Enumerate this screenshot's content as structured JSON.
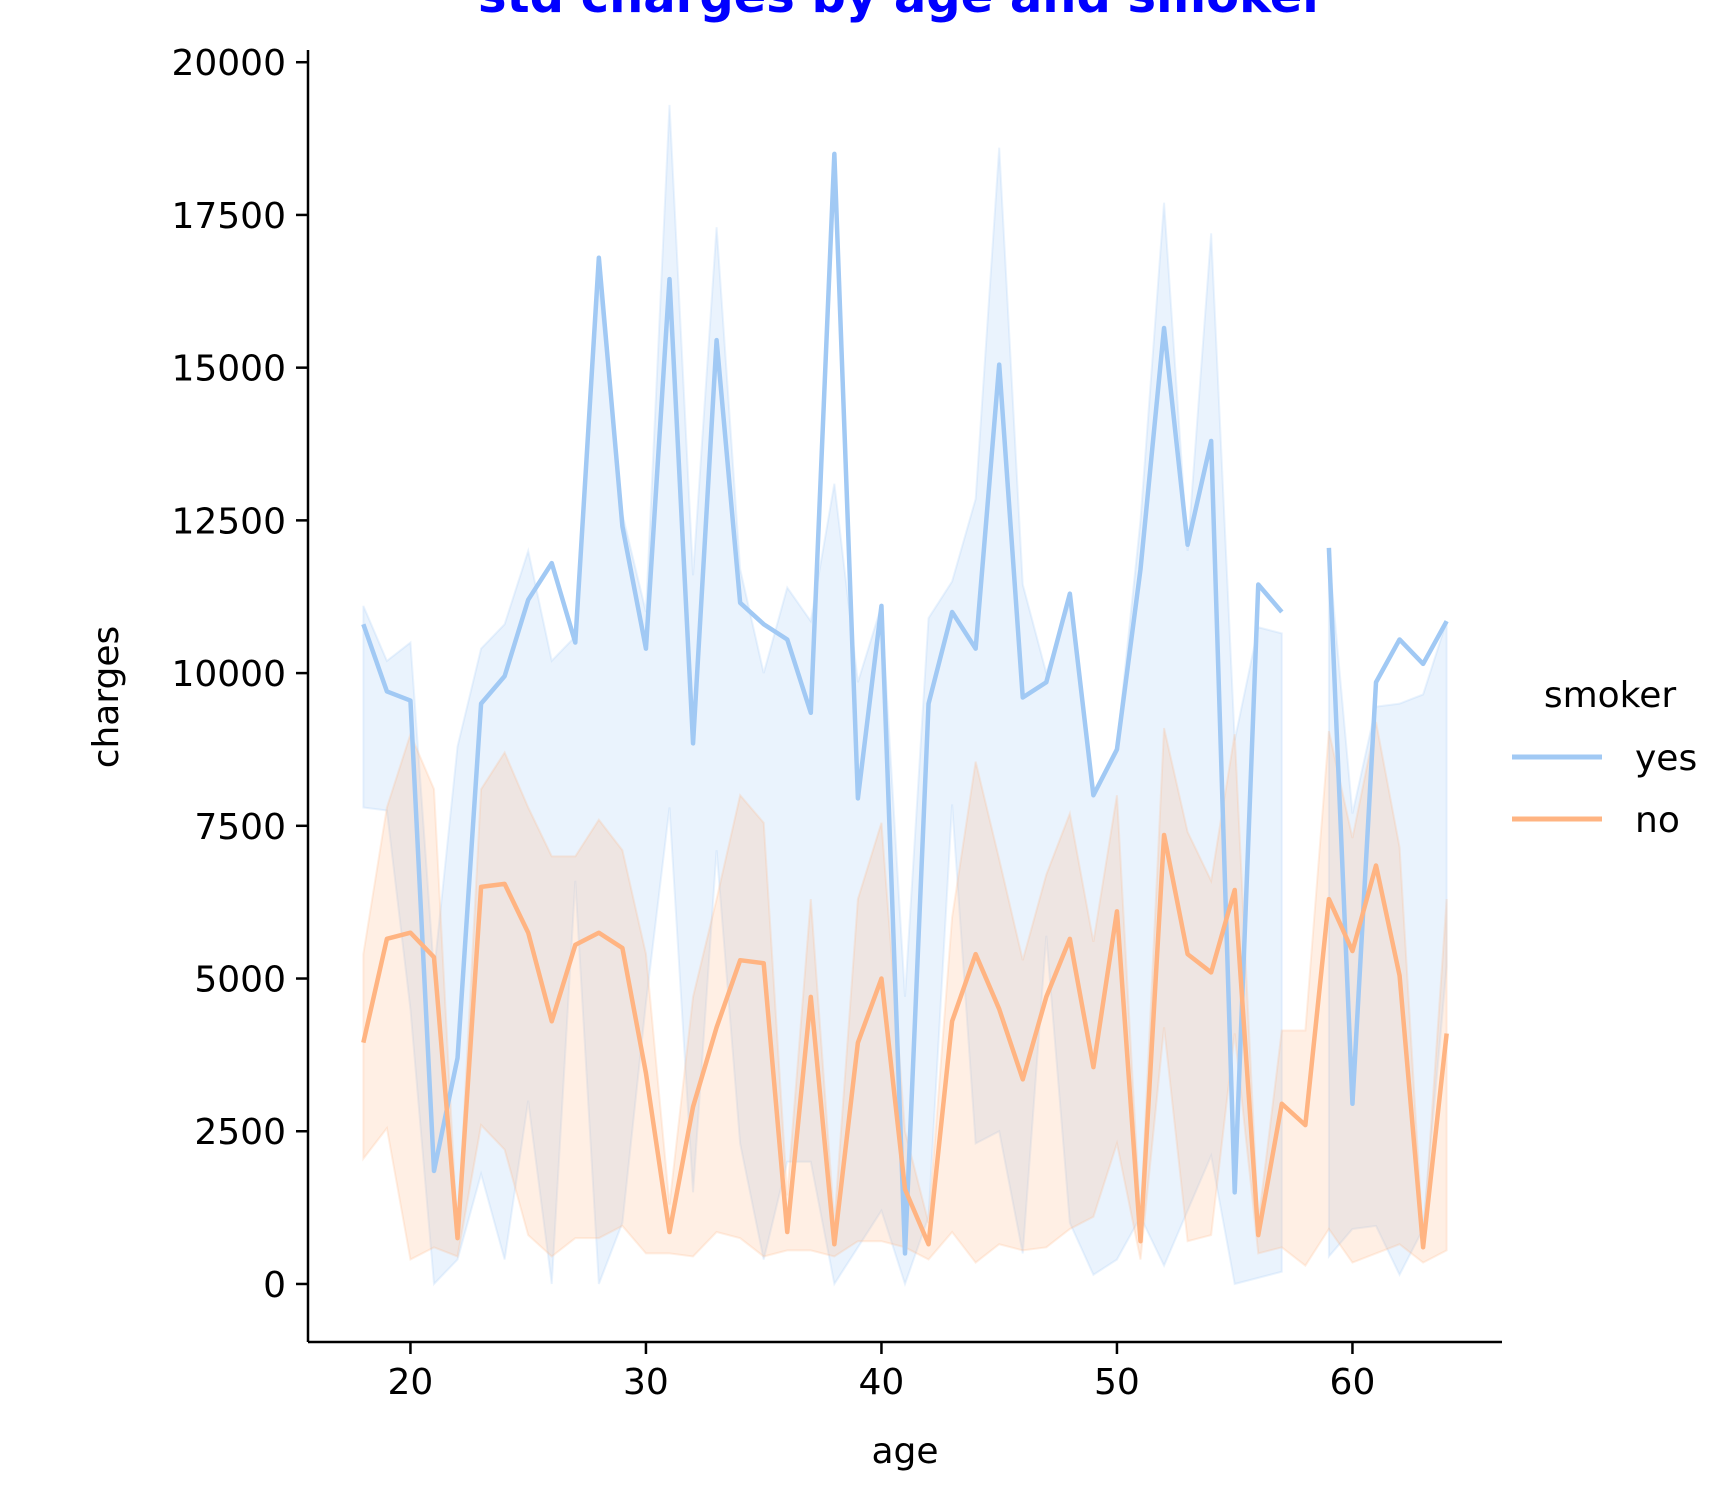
{
  "chart_data": {
    "type": "line",
    "title": "std charges by age and smoker",
    "title_color": "#0000ff",
    "xlabel": "age",
    "ylabel": "charges",
    "xlim": [
      15.65,
      66.35
    ],
    "ylim": [
      -950,
      20200
    ],
    "xticks": [
      20,
      30,
      40,
      50,
      60
    ],
    "yticks": [
      0,
      2500,
      5000,
      7500,
      10000,
      12500,
      15000,
      17500,
      20000
    ],
    "grid": false,
    "legend": {
      "title": "smoker",
      "placement": "right"
    },
    "series": [
      {
        "name": "yes",
        "color": "#a1c9f4",
        "points": [
          [
            18,
            10800
          ],
          [
            19,
            9700
          ],
          [
            20,
            9550
          ],
          [
            21,
            1850
          ],
          [
            22,
            3700
          ],
          [
            23,
            9500
          ],
          [
            24,
            9950
          ],
          [
            25,
            11200
          ],
          [
            26,
            11800
          ],
          [
            27,
            10500
          ],
          [
            28,
            16800
          ],
          [
            29,
            12400
          ],
          [
            30,
            10400
          ],
          [
            31,
            16450
          ],
          [
            32,
            8850
          ],
          [
            33,
            15450
          ],
          [
            34,
            11150
          ],
          [
            35,
            10800
          ],
          [
            36,
            10550
          ],
          [
            37,
            9350
          ],
          [
            38,
            18500
          ],
          [
            39,
            7950
          ],
          [
            40,
            11100
          ],
          [
            41,
            500
          ],
          [
            42,
            9500
          ],
          [
            43,
            11000
          ],
          [
            44,
            10400
          ],
          [
            45,
            15050
          ],
          [
            46,
            9600
          ],
          [
            47,
            9850
          ],
          [
            48,
            11300
          ],
          [
            49,
            8000
          ],
          [
            50,
            8750
          ],
          [
            51,
            11700
          ],
          [
            52,
            15650
          ],
          [
            53,
            12100
          ],
          [
            54,
            13800
          ],
          [
            55,
            1500
          ],
          [
            56,
            11450
          ],
          [
            57,
            11000
          ],
          [
            58,
            null
          ],
          [
            59,
            12050
          ],
          [
            60,
            2950
          ],
          [
            61,
            9850
          ],
          [
            62,
            10550
          ],
          [
            63,
            10150
          ],
          [
            64,
            10850
          ]
        ],
        "band_upper": [
          [
            18,
            11100
          ],
          [
            19,
            10200
          ],
          [
            20,
            10500
          ],
          [
            21,
            5100
          ],
          [
            22,
            8800
          ],
          [
            23,
            10400
          ],
          [
            24,
            10800
          ],
          [
            25,
            12000
          ],
          [
            26,
            10200
          ],
          [
            27,
            10600
          ],
          [
            28,
            16400
          ],
          [
            29,
            12600
          ],
          [
            30,
            11000
          ],
          [
            31,
            19300
          ],
          [
            32,
            11600
          ],
          [
            33,
            17300
          ],
          [
            34,
            11700
          ],
          [
            35,
            10000
          ],
          [
            36,
            11400
          ],
          [
            37,
            10850
          ],
          [
            38,
            13100
          ],
          [
            39,
            9850
          ],
          [
            40,
            11100
          ],
          [
            41,
            4700
          ],
          [
            42,
            10900
          ],
          [
            43,
            11500
          ],
          [
            44,
            12850
          ],
          [
            45,
            18600
          ],
          [
            46,
            11450
          ],
          [
            47,
            10000
          ],
          [
            48,
            11150
          ],
          [
            49,
            8000
          ],
          [
            50,
            8800
          ],
          [
            51,
            12500
          ],
          [
            52,
            17700
          ],
          [
            53,
            12000
          ],
          [
            54,
            17200
          ],
          [
            55,
            8900
          ],
          [
            56,
            10750
          ],
          [
            57,
            10650
          ],
          [
            58,
            null
          ],
          [
            59,
            11950
          ],
          [
            60,
            7700
          ],
          [
            61,
            9450
          ],
          [
            62,
            9500
          ],
          [
            63,
            9650
          ],
          [
            64,
            10850
          ]
        ],
        "band_lower": [
          [
            18,
            7800
          ],
          [
            19,
            7750
          ],
          [
            20,
            4500
          ],
          [
            21,
            0
          ],
          [
            22,
            400
          ],
          [
            23,
            1800
          ],
          [
            24,
            400
          ],
          [
            25,
            3000
          ],
          [
            26,
            0
          ],
          [
            27,
            6600
          ],
          [
            28,
            0
          ],
          [
            29,
            1000
          ],
          [
            30,
            4600
          ],
          [
            31,
            7800
          ],
          [
            32,
            1500
          ],
          [
            33,
            7100
          ],
          [
            34,
            2300
          ],
          [
            35,
            400
          ],
          [
            36,
            2000
          ],
          [
            37,
            2000
          ],
          [
            38,
            0
          ],
          [
            39,
            600
          ],
          [
            40,
            1200
          ],
          [
            41,
            0
          ],
          [
            42,
            1100
          ],
          [
            43,
            7850
          ],
          [
            44,
            2300
          ],
          [
            45,
            2500
          ],
          [
            46,
            500
          ],
          [
            47,
            5700
          ],
          [
            48,
            1000
          ],
          [
            49,
            150
          ],
          [
            50,
            400
          ],
          [
            51,
            1100
          ],
          [
            52,
            300
          ],
          [
            53,
            1200
          ],
          [
            54,
            2100
          ],
          [
            55,
            0
          ],
          [
            56,
            100
          ],
          [
            57,
            200
          ],
          [
            58,
            null
          ],
          [
            59,
            450
          ],
          [
            60,
            900
          ],
          [
            61,
            950
          ],
          [
            62,
            150
          ],
          [
            63,
            900
          ],
          [
            64,
            5200
          ]
        ]
      },
      {
        "name": "no",
        "color": "#ffb482",
        "points": [
          [
            18,
            3950
          ],
          [
            19,
            5650
          ],
          [
            20,
            5750
          ],
          [
            21,
            5350
          ],
          [
            22,
            750
          ],
          [
            23,
            6500
          ],
          [
            24,
            6550
          ],
          [
            25,
            5750
          ],
          [
            26,
            4300
          ],
          [
            27,
            5550
          ],
          [
            28,
            5750
          ],
          [
            29,
            5500
          ],
          [
            30,
            3450
          ],
          [
            31,
            850
          ],
          [
            32,
            2900
          ],
          [
            33,
            4200
          ],
          [
            34,
            5300
          ],
          [
            35,
            5250
          ],
          [
            36,
            850
          ],
          [
            37,
            4700
          ],
          [
            38,
            650
          ],
          [
            39,
            3950
          ],
          [
            40,
            5000
          ],
          [
            41,
            1550
          ],
          [
            42,
            650
          ],
          [
            43,
            4300
          ],
          [
            44,
            5400
          ],
          [
            45,
            4500
          ],
          [
            46,
            3350
          ],
          [
            47,
            4700
          ],
          [
            48,
            5650
          ],
          [
            49,
            3550
          ],
          [
            50,
            6100
          ],
          [
            51,
            700
          ],
          [
            52,
            7350
          ],
          [
            53,
            5400
          ],
          [
            54,
            5100
          ],
          [
            55,
            6450
          ],
          [
            56,
            800
          ],
          [
            57,
            2950
          ],
          [
            58,
            2600
          ],
          [
            59,
            6300
          ],
          [
            60,
            5450
          ],
          [
            61,
            6850
          ],
          [
            62,
            5050
          ],
          [
            63,
            600
          ],
          [
            64,
            4100
          ]
        ],
        "band_upper": [
          [
            18,
            5400
          ],
          [
            19,
            7800
          ],
          [
            20,
            9000
          ],
          [
            21,
            8100
          ],
          [
            22,
            750
          ],
          [
            23,
            8100
          ],
          [
            24,
            8700
          ],
          [
            25,
            7800
          ],
          [
            26,
            7000
          ],
          [
            27,
            7000
          ],
          [
            28,
            7600
          ],
          [
            29,
            7100
          ],
          [
            30,
            5400
          ],
          [
            31,
            1300
          ],
          [
            32,
            4700
          ],
          [
            33,
            6300
          ],
          [
            34,
            8000
          ],
          [
            35,
            7550
          ],
          [
            36,
            1450
          ],
          [
            37,
            6300
          ],
          [
            38,
            1000
          ],
          [
            39,
            6300
          ],
          [
            40,
            7550
          ],
          [
            41,
            2500
          ],
          [
            42,
            1000
          ],
          [
            43,
            6000
          ],
          [
            44,
            8550
          ],
          [
            45,
            6950
          ],
          [
            46,
            5300
          ],
          [
            47,
            6700
          ],
          [
            48,
            7700
          ],
          [
            49,
            5600
          ],
          [
            50,
            8000
          ],
          [
            51,
            1000
          ],
          [
            52,
            9100
          ],
          [
            53,
            7400
          ],
          [
            54,
            6600
          ],
          [
            55,
            9000
          ],
          [
            56,
            1000
          ],
          [
            57,
            4150
          ],
          [
            58,
            4150
          ],
          [
            59,
            9050
          ],
          [
            60,
            7300
          ],
          [
            61,
            9200
          ],
          [
            62,
            7150
          ],
          [
            63,
            700
          ],
          [
            64,
            6300
          ]
        ],
        "band_lower": [
          [
            18,
            2050
          ],
          [
            19,
            2550
          ],
          [
            20,
            400
          ],
          [
            21,
            600
          ],
          [
            22,
            450
          ],
          [
            23,
            2600
          ],
          [
            24,
            2200
          ],
          [
            25,
            800
          ],
          [
            26,
            450
          ],
          [
            27,
            750
          ],
          [
            28,
            750
          ],
          [
            29,
            950
          ],
          [
            30,
            500
          ],
          [
            31,
            500
          ],
          [
            32,
            450
          ],
          [
            33,
            850
          ],
          [
            34,
            750
          ],
          [
            35,
            450
          ],
          [
            36,
            550
          ],
          [
            37,
            550
          ],
          [
            38,
            450
          ],
          [
            39,
            700
          ],
          [
            40,
            700
          ],
          [
            41,
            600
          ],
          [
            42,
            400
          ],
          [
            43,
            850
          ],
          [
            44,
            350
          ],
          [
            45,
            650
          ],
          [
            46,
            550
          ],
          [
            47,
            600
          ],
          [
            48,
            900
          ],
          [
            49,
            1100
          ],
          [
            50,
            2300
          ],
          [
            51,
            400
          ],
          [
            52,
            4200
          ],
          [
            53,
            700
          ],
          [
            54,
            800
          ],
          [
            55,
            4100
          ],
          [
            56,
            500
          ],
          [
            57,
            600
          ],
          [
            58,
            300
          ],
          [
            59,
            900
          ],
          [
            60,
            350
          ],
          [
            61,
            500
          ],
          [
            62,
            650
          ],
          [
            63,
            350
          ],
          [
            64,
            550
          ]
        ]
      }
    ]
  }
}
